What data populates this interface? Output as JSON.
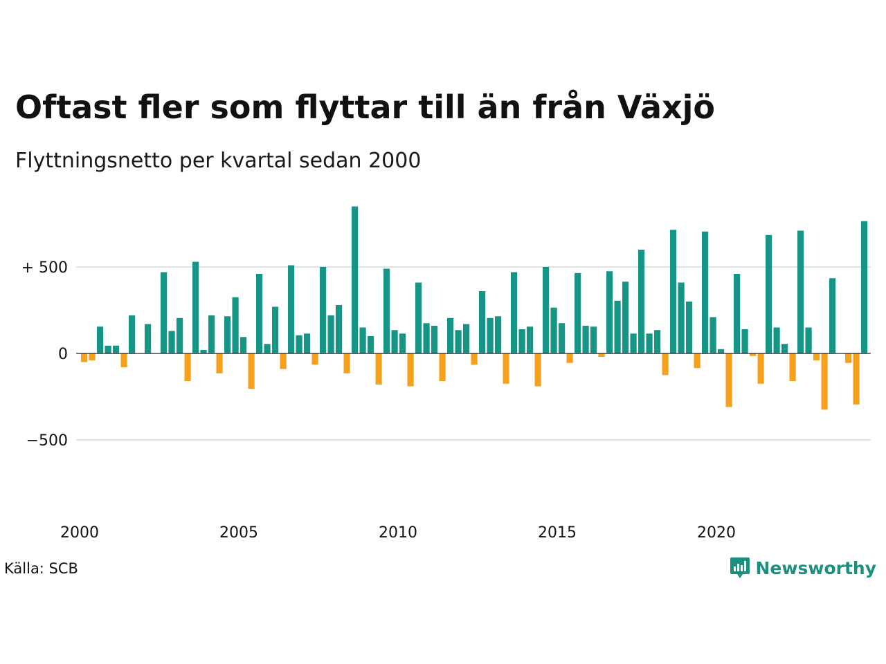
{
  "header": {
    "title": "Oftast fler som flyttar till än från Växjö",
    "subtitle": "Flyttningsnetto per kvartal sedan 2000"
  },
  "footer": {
    "source": "Källa: SCB",
    "brand": "Newsworthy"
  },
  "colors": {
    "positive": "#169486",
    "negative": "#f5a11c",
    "grid": "#e2e2e2",
    "brand": "#1d8f7f"
  },
  "chart_data": {
    "type": "bar",
    "title": "Oftast fler som flyttar till än från Växjö",
    "subtitle": "Flyttningsnetto per kvartal sedan 2000",
    "xlabel": "",
    "ylabel": "",
    "ylim": [
      -850,
      900
    ],
    "grid": true,
    "y_ticks": [
      {
        "value": 500,
        "label": "+ 500"
      },
      {
        "value": 0,
        "label": "0"
      },
      {
        "value": -500,
        "label": "−500"
      }
    ],
    "x_ticks": [
      {
        "year": 2000,
        "label": "2000"
      },
      {
        "year": 2005,
        "label": "2005"
      },
      {
        "year": 2010,
        "label": "2010"
      },
      {
        "year": 2015,
        "label": "2015"
      },
      {
        "year": 2020,
        "label": "2020"
      }
    ],
    "start_year": 2000,
    "periods_per_year": 4,
    "values": [
      -50,
      -40,
      155,
      45,
      45,
      -80,
      220,
      0,
      170,
      0,
      470,
      130,
      205,
      -160,
      530,
      20,
      220,
      -115,
      215,
      325,
      95,
      -205,
      460,
      55,
      270,
      -90,
      510,
      105,
      115,
      -65,
      500,
      220,
      280,
      -115,
      850,
      150,
      100,
      -180,
      490,
      135,
      115,
      -190,
      410,
      175,
      160,
      -160,
      205,
      135,
      170,
      -65,
      360,
      205,
      215,
      -175,
      470,
      140,
      155,
      -190,
      500,
      265,
      175,
      -55,
      465,
      160,
      155,
      -20,
      475,
      305,
      415,
      115,
      600,
      115,
      135,
      -125,
      715,
      410,
      300,
      -85,
      705,
      210,
      25,
      -310,
      460,
      140,
      -15,
      -175,
      685,
      150,
      55,
      -160,
      710,
      150,
      -40,
      -325,
      435,
      0,
      -55,
      -295,
      765
    ]
  }
}
